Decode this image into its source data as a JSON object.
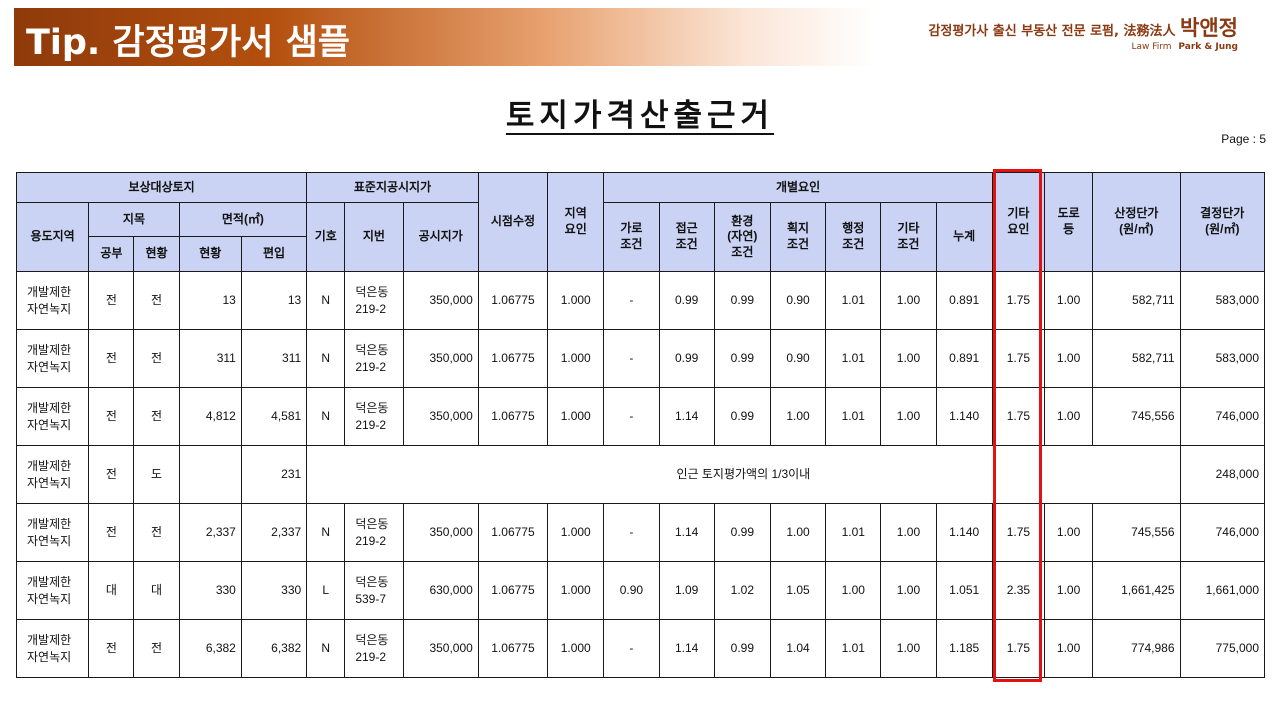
{
  "header": {
    "tip_title": "Tip. 감정평가서 샘플",
    "brand_tagline": "감정평가사 출신 부동산 전문 로펌,",
    "brand_hanja": "法務法人",
    "brand_name": "박앤정",
    "brand_sub_label": "Law Firm",
    "brand_sub_name": "Park & Jung"
  },
  "document": {
    "title": "토지가격산출근거",
    "page_label": "Page : 5"
  },
  "table": {
    "group_headers": {
      "target_land": "보상대상토지",
      "standard_land": "표준지공시지가",
      "individual_factors": "개별요인"
    },
    "headers": {
      "use_zone": "용도지역",
      "land_category": "지목",
      "area": "면적(㎡)",
      "register": "공부",
      "actual": "현황",
      "area_actual": "현황",
      "area_included": "편입",
      "symbol": "기호",
      "lot_number": "지번",
      "posted_price": "공시지가",
      "time_adjustment": "시점수정",
      "regional_factor": "지역\n요인",
      "street_condition": "가로\n조건",
      "access_condition": "접근\n조건",
      "environment_condition": "환경\n(자연)\n조건",
      "lot_condition": "획지\n조건",
      "admin_condition": "행정\n조건",
      "other_condition": "기타\n조건",
      "cumulative": "누계",
      "other_factor": "기타\n요인",
      "road_adjustment": "도로\n등",
      "computed_unit_price": "산정단가\n(원/㎡)",
      "final_unit_price": "결정단가\n(원/㎡)"
    },
    "rows": [
      {
        "zone": "개발제한\n자연녹지",
        "reg": "전",
        "act": "전",
        "area_actual": "13",
        "area_included": "13",
        "symbol": "N",
        "lot": "덕은동\n219-2",
        "price": "350,000",
        "time": "1.06775",
        "regional": "1.000",
        "street": "-",
        "access": "0.99",
        "env": "0.99",
        "lotc": "0.90",
        "admin": "1.01",
        "other": "1.00",
        "cum": "0.891",
        "etc": "1.75",
        "road": "1.00",
        "computed": "582,711",
        "final": "583,000"
      },
      {
        "zone": "개발제한\n자연녹지",
        "reg": "전",
        "act": "전",
        "area_actual": "311",
        "area_included": "311",
        "symbol": "N",
        "lot": "덕은동\n219-2",
        "price": "350,000",
        "time": "1.06775",
        "regional": "1.000",
        "street": "-",
        "access": "0.99",
        "env": "0.99",
        "lotc": "0.90",
        "admin": "1.01",
        "other": "1.00",
        "cum": "0.891",
        "etc": "1.75",
        "road": "1.00",
        "computed": "582,711",
        "final": "583,000"
      },
      {
        "zone": "개발제한\n자연녹지",
        "reg": "전",
        "act": "전",
        "area_actual": "4,812",
        "area_included": "4,581",
        "symbol": "N",
        "lot": "덕은동\n219-2",
        "price": "350,000",
        "time": "1.06775",
        "regional": "1.000",
        "street": "-",
        "access": "1.14",
        "env": "0.99",
        "lotc": "1.00",
        "admin": "1.01",
        "other": "1.00",
        "cum": "1.140",
        "etc": "1.75",
        "road": "1.00",
        "computed": "745,556",
        "final": "746,000"
      },
      {
        "zone": "개발제한\n자연녹지",
        "reg": "전",
        "act": "도",
        "area_actual": "",
        "area_included": "231",
        "note": "인근 토지평가액의 1/3이내",
        "final": "248,000"
      },
      {
        "zone": "개발제한\n자연녹지",
        "reg": "전",
        "act": "전",
        "area_actual": "2,337",
        "area_included": "2,337",
        "symbol": "N",
        "lot": "덕은동\n219-2",
        "price": "350,000",
        "time": "1.06775",
        "regional": "1.000",
        "street": "-",
        "access": "1.14",
        "env": "0.99",
        "lotc": "1.00",
        "admin": "1.01",
        "other": "1.00",
        "cum": "1.140",
        "etc": "1.75",
        "road": "1.00",
        "computed": "745,556",
        "final": "746,000"
      },
      {
        "zone": "개발제한\n자연녹지",
        "reg": "대",
        "act": "대",
        "area_actual": "330",
        "area_included": "330",
        "symbol": "L",
        "lot": "덕은동\n539-7",
        "price": "630,000",
        "time": "1.06775",
        "regional": "1.000",
        "street": "0.90",
        "access": "1.09",
        "env": "1.02",
        "lotc": "1.05",
        "admin": "1.00",
        "other": "1.00",
        "cum": "1.051",
        "etc": "2.35",
        "road": "1.00",
        "computed": "1,661,425",
        "final": "1,661,000"
      },
      {
        "zone": "개발제한\n자연녹지",
        "reg": "전",
        "act": "전",
        "area_actual": "6,382",
        "area_included": "6,382",
        "symbol": "N",
        "lot": "덕은동\n219-2",
        "price": "350,000",
        "time": "1.06775",
        "regional": "1.000",
        "street": "-",
        "access": "1.14",
        "env": "0.99",
        "lotc": "1.04",
        "admin": "1.01",
        "other": "1.00",
        "cum": "1.185",
        "etc": "1.75",
        "road": "1.00",
        "computed": "774,986",
        "final": "775,000"
      }
    ]
  },
  "colors": {
    "header_fill": "#cbd3f4",
    "highlight": "#e31212",
    "banner_dark": "#8f3a0a",
    "brand": "#8a3a12"
  }
}
